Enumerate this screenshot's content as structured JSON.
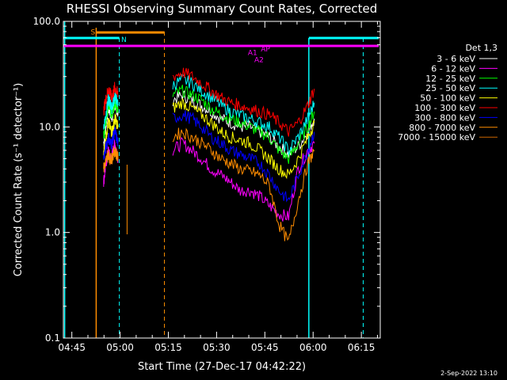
{
  "chart_data": {
    "type": "line",
    "title": "RHESSI Observing Summary Count Rates, Corrected",
    "xlabel": "Start Time (27-Dec-17 04:42:22)",
    "ylabel": "Corrected Count Rate (s⁻¹ detector⁻¹)",
    "ylog": true,
    "ylim": [
      0.1,
      100
    ],
    "y_tick_labels": [
      "0.1",
      "1.0",
      "10.0",
      "100.0"
    ],
    "y_tick_values": [
      0.1,
      1,
      10,
      100
    ],
    "xlim_minutes": [
      0,
      98.5
    ],
    "x_tick_labels": [
      "04:45",
      "05:00",
      "05:15",
      "05:30",
      "05:45",
      "06:00",
      "06:15"
    ],
    "x_tick_minutes": [
      2.63,
      17.63,
      32.63,
      47.63,
      62.63,
      77.63,
      92.63
    ],
    "legend_header": "Det 1,3",
    "legend_position": "right",
    "grid": false,
    "series": [
      {
        "name": "3 - 6 keV",
        "color": "#ffffff",
        "segments": [
          {
            "x": [
              12.5,
              13,
              13.5,
              14,
              14.5,
              15,
              15.5,
              16,
              16.5,
              17
            ],
            "y": [
              7,
              9,
              12,
              15,
              14,
              12,
              14,
              16,
              15,
              13
            ]
          },
          {
            "x": [
              34,
              37,
              40,
              43,
              46,
              49,
              52,
              55,
              58,
              61,
              64,
              67,
              70,
              73,
              76,
              78
            ],
            "y": [
              18,
              20,
              18,
              16,
              14,
              12,
              11,
              10,
              10,
              9,
              8,
              6.5,
              5.5,
              6.5,
              9,
              12
            ]
          }
        ]
      },
      {
        "name": "6 - 12 keV",
        "color": "#ff00ff",
        "segments": [
          {
            "x": [
              12.5,
              13,
              13.5,
              14,
              14.5,
              15,
              15.5,
              16,
              16.5,
              17
            ],
            "y": [
              3,
              4,
              5,
              6,
              5,
              5,
              6,
              7,
              6,
              5
            ]
          },
          {
            "x": [
              34,
              37,
              40,
              43,
              46,
              49,
              52,
              55,
              58,
              61,
              64,
              67,
              70,
              73,
              76,
              78
            ],
            "y": [
              6,
              7,
              6,
              5,
              4,
              3.5,
              3,
              2.5,
              2.5,
              2.2,
              1.8,
              1.5,
              1.4,
              4,
              6,
              7
            ]
          }
        ]
      },
      {
        "name": "12 - 25 keV",
        "color": "#00ff00",
        "segments": [
          {
            "x": [
              12.5,
              13,
              13.5,
              14,
              14.5,
              15,
              15.5,
              16,
              16.5,
              17
            ],
            "y": [
              8,
              10,
              13,
              16,
              15,
              13,
              15,
              17,
              16,
              14
            ]
          },
          {
            "x": [
              34,
              37,
              40,
              43,
              46,
              49,
              52,
              55,
              58,
              61,
              64,
              67,
              70,
              73,
              76,
              78
            ],
            "y": [
              20,
              22,
              20,
              18,
              15,
              13,
              12,
              11,
              10,
              9,
              8,
              6,
              5,
              7,
              10,
              14
            ]
          }
        ]
      },
      {
        "name": "25 - 50 keV",
        "color": "#00ffff",
        "segments": [
          {
            "x": [
              12.5,
              13,
              13.5,
              14,
              14.5,
              15,
              15.5,
              16,
              16.5,
              17
            ],
            "y": [
              10,
              12,
              15,
              18,
              17,
              15,
              17,
              20,
              18,
              16
            ]
          },
          {
            "x": [
              34,
              37,
              40,
              43,
              46,
              49,
              52,
              55,
              58,
              61,
              64,
              67,
              70,
              73,
              76,
              78
            ],
            "y": [
              25,
              28,
              26,
              22,
              19,
              16,
              14,
              13,
              12,
              11,
              10,
              8,
              6,
              8,
              12,
              17
            ]
          }
        ]
      },
      {
        "name": "50 - 100 keV",
        "color": "#ffff00",
        "segments": [
          {
            "x": [
              12.5,
              13,
              13.5,
              14,
              14.5,
              15,
              15.5,
              16,
              16.5,
              17
            ],
            "y": [
              6,
              7,
              9,
              11,
              10,
              9,
              10,
              12,
              11,
              10
            ]
          },
          {
            "x": [
              34,
              37,
              40,
              43,
              46,
              49,
              52,
              55,
              58,
              61,
              64,
              67,
              70,
              73,
              76,
              78
            ],
            "y": [
              15,
              17,
              15,
              13,
              11,
              9,
              8,
              7.5,
              7,
              6,
              5,
              4,
              3.5,
              5,
              8,
              11
            ]
          }
        ]
      },
      {
        "name": "100 - 300 keV",
        "color": "#ff0000",
        "segments": [
          {
            "x": [
              12.5,
              13,
              13.5,
              14,
              14.5,
              15,
              15.5,
              16,
              16.5,
              17
            ],
            "y": [
              14,
              17,
              20,
              23,
              21,
              19,
              21,
              24,
              22,
              20
            ]
          },
          {
            "x": [
              34,
              37,
              40,
              43,
              46,
              49,
              52,
              55,
              58,
              61,
              64,
              67,
              70,
              73,
              76,
              78
            ],
            "y": [
              30,
              33,
              30,
              26,
              22,
              19,
              17,
              16,
              15,
              14,
              13,
              11,
              9,
              11,
              16,
              23
            ]
          }
        ]
      },
      {
        "name": "300 - 800 keV",
        "color": "#0000ff",
        "segments": [
          {
            "x": [
              12.5,
              13,
              13.5,
              14,
              14.5,
              15,
              15.5,
              16,
              16.5,
              17
            ],
            "y": [
              5,
              6,
              7,
              8,
              7,
              7,
              8,
              9,
              8,
              7
            ]
          },
          {
            "x": [
              34,
              37,
              40,
              43,
              46,
              49,
              52,
              55,
              58,
              61,
              64,
              67,
              70,
              73,
              76,
              78
            ],
            "y": [
              12,
              13,
              12,
              10,
              8,
              7,
              6,
              5.5,
              5,
              4.5,
              3.5,
              2.5,
              2,
              3.5,
              6,
              9
            ]
          }
        ]
      },
      {
        "name": "800 - 7000 keV",
        "color": "#ff8c00",
        "segments": [
          {
            "x": [
              12.5,
              13,
              13.5,
              14,
              14.5,
              15,
              15.5,
              16,
              16.5,
              17
            ],
            "y": [
              4,
              4.5,
              5,
              5.5,
              5,
              5,
              5.5,
              6,
              5.5,
              5
            ]
          },
          {
            "x": [
              34,
              37,
              40,
              43,
              46,
              49,
              52,
              55,
              58,
              61,
              64,
              67,
              70,
              73,
              76,
              78
            ],
            "y": [
              8,
              9,
              8,
              7,
              6,
              5,
              4.5,
              4,
              3.8,
              3.5,
              2.8,
              1.2,
              0.8,
              2,
              4.5,
              6
            ]
          }
        ]
      },
      {
        "name": "7000 - 15000 keV",
        "color": "#cc6600",
        "segments": []
      }
    ],
    "annotations": [
      {
        "text": "S",
        "x": 9.2,
        "y": 75,
        "color": "#ff8c00"
      },
      {
        "text": "N",
        "x": 18.8,
        "y": 64,
        "color": "#00ffff"
      },
      {
        "text": "A1",
        "x": 58.8,
        "y": 48,
        "color": "#ff00ff"
      },
      {
        "text": "A2",
        "x": 60.8,
        "y": 41,
        "color": "#ff00ff"
      },
      {
        "text": "AP",
        "x": 62.8,
        "y": 52,
        "color": "#ff00ff"
      }
    ],
    "timestamp": "2-Sep-2022 13:10"
  }
}
